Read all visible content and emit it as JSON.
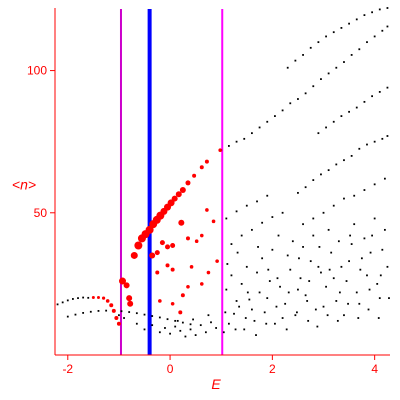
{
  "chart_data": {
    "type": "scatter",
    "xlabel": "E",
    "ylabel": "<n>",
    "xlim": [
      -2.25,
      4.3
    ],
    "ylim": [
      0,
      122
    ],
    "x_ticks": [
      {
        "value": -2,
        "label": "-2"
      },
      {
        "value": 0,
        "label": "0"
      },
      {
        "value": 2,
        "label": "2"
      },
      {
        "value": 4,
        "label": "4"
      }
    ],
    "y_ticks": [
      {
        "value": 50,
        "label": "50"
      },
      {
        "value": 100,
        "label": "100"
      }
    ],
    "grid": false,
    "vertical_lines": [
      {
        "x": -0.96,
        "color": "#cc00cc"
      },
      {
        "x": -0.4,
        "color": "#0000ff"
      },
      {
        "x": 1.02,
        "color": "#ff00ff"
      }
    ],
    "series": [
      {
        "color": "#ff0000",
        "values": [
          [
            -1.5,
            20.2,
            1.5
          ],
          [
            -1.4,
            20.2,
            1.5
          ],
          [
            -1.3,
            20.0,
            1.6
          ],
          [
            -1.22,
            19.0,
            1.8
          ],
          [
            -1.15,
            17.5,
            2.0
          ],
          [
            -1.1,
            15.5,
            2.0
          ],
          [
            -1.05,
            13.0,
            2.0
          ],
          [
            -1.0,
            11.0,
            2.0
          ],
          [
            -0.93,
            26.0,
            3.5
          ],
          [
            -0.85,
            24.5,
            3.0
          ],
          [
            -0.8,
            20.0,
            3.0
          ],
          [
            -0.78,
            18.0,
            3.0
          ],
          [
            -0.7,
            35.0,
            3.5
          ],
          [
            -0.62,
            38.5,
            4.0
          ],
          [
            -0.55,
            41.0,
            4.0
          ],
          [
            -0.48,
            42.5,
            4.0
          ],
          [
            -0.4,
            44.0,
            4.0
          ],
          [
            -0.33,
            46.0,
            4.0
          ],
          [
            -0.26,
            47.5,
            4.0
          ],
          [
            -0.19,
            49.0,
            4.0
          ],
          [
            -0.12,
            50.5,
            3.5
          ],
          [
            -0.05,
            52.0,
            3.5
          ],
          [
            0.02,
            53.5,
            3.5
          ],
          [
            0.09,
            55.0,
            3.0
          ],
          [
            0.17,
            56.5,
            3.0
          ],
          [
            0.25,
            58.0,
            3.0
          ],
          [
            0.35,
            60.5,
            2.5
          ],
          [
            0.47,
            63.0,
            2.0
          ],
          [
            0.62,
            66.0,
            2.0
          ],
          [
            0.72,
            68.0,
            2.0
          ],
          [
            0.98,
            72.0,
            1.8
          ],
          [
            -0.35,
            35.0,
            3.0
          ],
          [
            -0.25,
            36.0,
            2.5
          ],
          [
            -0.15,
            39.5,
            2.5
          ],
          [
            -0.05,
            38.0,
            2.5
          ],
          [
            0.05,
            38.5,
            2.5
          ],
          [
            0.22,
            46.5,
            3.0
          ],
          [
            0.35,
            41.0,
            2.0
          ],
          [
            0.52,
            40.0,
            1.8
          ],
          [
            0.62,
            42.0,
            1.8
          ],
          [
            0.72,
            51.0,
            1.8
          ],
          [
            0.85,
            47.0,
            1.8
          ],
          [
            -0.25,
            29.0,
            2.0
          ],
          [
            -0.05,
            31.5,
            2.0
          ],
          [
            0.05,
            30.0,
            2.0
          ],
          [
            0.25,
            21.0,
            2.0
          ],
          [
            0.42,
            31.0,
            1.8
          ],
          [
            0.62,
            25.0,
            1.8
          ],
          [
            0.75,
            29.0,
            1.8
          ],
          [
            0.92,
            33.0,
            1.8
          ],
          [
            0.2,
            15.0,
            2.0
          ],
          [
            0.05,
            18.0,
            1.8
          ],
          [
            -0.2,
            19.0,
            1.8
          ],
          [
            0.35,
            24.0,
            1.8
          ]
        ]
      },
      {
        "color": "#000000",
        "values": [
          [
            -2.2,
            17.8
          ],
          [
            -2.1,
            18.5
          ],
          [
            -2.0,
            19.2
          ],
          [
            -1.9,
            19.7
          ],
          [
            -1.8,
            20.0
          ],
          [
            -1.7,
            20.2
          ],
          [
            -1.6,
            20.1
          ],
          [
            -1.0,
            14.0
          ],
          [
            -0.9,
            13.0
          ],
          [
            -2.0,
            13.5
          ],
          [
            -1.85,
            14.2
          ],
          [
            -1.7,
            14.8
          ],
          [
            -1.55,
            15.2
          ],
          [
            -1.4,
            15.5
          ],
          [
            -1.25,
            15.6
          ],
          [
            -1.1,
            15.6
          ],
          [
            -0.95,
            15.4
          ],
          [
            -0.8,
            15.1
          ],
          [
            -0.65,
            14.7
          ],
          [
            -0.5,
            14.2
          ],
          [
            -0.35,
            13.7
          ],
          [
            -0.2,
            13.2
          ],
          [
            -0.05,
            12.6
          ],
          [
            0.1,
            12.0
          ],
          [
            0.25,
            11.4
          ],
          [
            0.4,
            10.8
          ],
          [
            1.0,
            72.0
          ],
          [
            1.15,
            73.5
          ],
          [
            1.3,
            75.0
          ],
          [
            1.45,
            76.0
          ],
          [
            1.6,
            78.0
          ],
          [
            1.75,
            80.0
          ],
          [
            1.9,
            82.0
          ],
          [
            2.05,
            84.0
          ],
          [
            2.2,
            86.0
          ],
          [
            2.35,
            88.5
          ],
          [
            2.5,
            90.0
          ],
          [
            2.65,
            92.0
          ],
          [
            2.8,
            94.5
          ],
          [
            2.95,
            97.0
          ],
          [
            3.1,
            99.0
          ],
          [
            3.25,
            101.0
          ],
          [
            3.4,
            103.0
          ],
          [
            3.55,
            105.5
          ],
          [
            3.7,
            107.5
          ],
          [
            3.85,
            110.0
          ],
          [
            4.0,
            112.0
          ],
          [
            4.15,
            114.0
          ],
          [
            4.25,
            115.5
          ],
          [
            2.3,
            101.0
          ],
          [
            2.45,
            103.5
          ],
          [
            2.6,
            105.5
          ],
          [
            2.75,
            108.0
          ],
          [
            2.9,
            110.0
          ],
          [
            3.05,
            112.0
          ],
          [
            3.2,
            113.5
          ],
          [
            3.35,
            115.0
          ],
          [
            3.5,
            116.5
          ],
          [
            3.65,
            118.0
          ],
          [
            3.8,
            119.5
          ],
          [
            3.95,
            120.5
          ],
          [
            4.1,
            121.5
          ],
          [
            4.25,
            122.0
          ],
          [
            2.5,
            57.0
          ],
          [
            2.65,
            59.0
          ],
          [
            2.8,
            61.5
          ],
          [
            2.95,
            63.5
          ],
          [
            3.1,
            65.0
          ],
          [
            3.25,
            67.0
          ],
          [
            3.4,
            68.5
          ],
          [
            3.55,
            70.0
          ],
          [
            3.7,
            72.5
          ],
          [
            3.85,
            74.0
          ],
          [
            4.0,
            75.0
          ],
          [
            4.15,
            76.0
          ],
          [
            4.25,
            77.0
          ],
          [
            2.9,
            78.0
          ],
          [
            3.05,
            80.0
          ],
          [
            3.2,
            82.0
          ],
          [
            3.35,
            84.0
          ],
          [
            3.5,
            85.5
          ],
          [
            3.65,
            87.0
          ],
          [
            3.8,
            89.0
          ],
          [
            3.95,
            91.0
          ],
          [
            4.1,
            92.5
          ],
          [
            4.25,
            94.0
          ],
          [
            1.1,
            48.0
          ],
          [
            1.3,
            50.5
          ],
          [
            1.5,
            52.5
          ],
          [
            1.7,
            54.0
          ],
          [
            1.9,
            56.0
          ],
          [
            1.2,
            39.0
          ],
          [
            1.4,
            42.0
          ],
          [
            1.6,
            44.0
          ],
          [
            1.8,
            46.5
          ],
          [
            2.0,
            48.5
          ],
          [
            2.2,
            50.0
          ],
          [
            2.6,
            46.0
          ],
          [
            2.8,
            48.0
          ],
          [
            3.0,
            50.0
          ],
          [
            3.2,
            52.5
          ],
          [
            3.4,
            55.0
          ],
          [
            3.6,
            56.0
          ],
          [
            3.8,
            58.0
          ],
          [
            4.0,
            60.0
          ],
          [
            4.2,
            62.0
          ],
          [
            -0.2,
            8.0
          ],
          [
            -0.1,
            9.5
          ],
          [
            0.0,
            7.5
          ],
          [
            0.1,
            10.0
          ],
          [
            0.2,
            8.5
          ],
          [
            0.3,
            6.5
          ],
          [
            0.4,
            9.0
          ],
          [
            0.5,
            7.0
          ],
          [
            0.6,
            10.5
          ],
          [
            0.7,
            8.0
          ],
          [
            0.8,
            11.5
          ],
          [
            0.9,
            9.5
          ],
          [
            -0.35,
            10.5
          ],
          [
            -0.5,
            9.0
          ],
          [
            -0.65,
            11.0
          ],
          [
            0.15,
            12.0
          ],
          [
            0.45,
            12.5
          ],
          [
            0.75,
            14.0
          ],
          [
            1.05,
            8.0
          ],
          [
            1.15,
            11.0
          ],
          [
            1.25,
            14.5
          ],
          [
            1.35,
            17.0
          ],
          [
            1.45,
            9.0
          ],
          [
            1.55,
            19.5
          ],
          [
            1.65,
            12.0
          ],
          [
            1.75,
            22.0
          ],
          [
            1.85,
            15.0
          ],
          [
            1.95,
            26.0
          ],
          [
            2.05,
            11.0
          ],
          [
            2.15,
            24.0
          ],
          [
            2.25,
            18.0
          ],
          [
            2.35,
            30.0
          ],
          [
            2.45,
            14.0
          ],
          [
            2.55,
            27.0
          ],
          [
            2.65,
            21.0
          ],
          [
            2.75,
            33.0
          ],
          [
            2.85,
            16.0
          ],
          [
            2.95,
            29.0
          ],
          [
            3.05,
            24.0
          ],
          [
            3.15,
            36.0
          ],
          [
            3.25,
            19.0
          ],
          [
            3.35,
            31.0
          ],
          [
            3.45,
            26.0
          ],
          [
            3.55,
            39.0
          ],
          [
            3.65,
            22.0
          ],
          [
            3.75,
            34.0
          ],
          [
            3.85,
            28.0
          ],
          [
            3.95,
            42.0
          ],
          [
            4.05,
            25.0
          ],
          [
            4.15,
            37.0
          ],
          [
            4.25,
            31.0
          ],
          [
            1.1,
            23.0
          ],
          [
            1.2,
            28.0
          ],
          [
            1.3,
            19.0
          ],
          [
            1.4,
            25.0
          ],
          [
            1.5,
            31.0
          ],
          [
            1.6,
            16.0
          ],
          [
            1.7,
            29.0
          ],
          [
            1.8,
            34.0
          ],
          [
            1.9,
            20.0
          ],
          [
            2.0,
            37.0
          ],
          [
            2.1,
            27.0
          ],
          [
            2.2,
            13.0
          ],
          [
            2.3,
            35.0
          ],
          [
            2.4,
            40.0
          ],
          [
            2.5,
            23.0
          ],
          [
            2.6,
            38.0
          ],
          [
            2.7,
            12.0
          ],
          [
            2.8,
            42.0
          ],
          [
            2.9,
            31.0
          ],
          [
            3.0,
            17.0
          ],
          [
            3.1,
            44.0
          ],
          [
            3.2,
            27.0
          ],
          [
            3.3,
            40.0
          ],
          [
            3.4,
            14.0
          ],
          [
            3.5,
            33.0
          ],
          [
            3.6,
            46.0
          ],
          [
            3.7,
            18.0
          ],
          [
            3.8,
            41.0
          ],
          [
            3.9,
            23.0
          ],
          [
            4.0,
            48.0
          ],
          [
            4.1,
            20.0
          ],
          [
            4.2,
            44.0
          ],
          [
            1.12,
            32.0
          ],
          [
            1.32,
            36.0
          ],
          [
            1.52,
            22.0
          ],
          [
            1.72,
            38.0
          ],
          [
            1.92,
            30.0
          ],
          [
            2.12,
            42.0
          ],
          [
            2.32,
            22.0
          ],
          [
            2.52,
            34.0
          ],
          [
            2.72,
            26.0
          ],
          [
            2.92,
            38.0
          ],
          [
            3.12,
            30.0
          ],
          [
            3.32,
            22.0
          ],
          [
            3.52,
            42.0
          ],
          [
            3.72,
            30.0
          ],
          [
            3.92,
            36.0
          ],
          [
            4.12,
            28.0
          ],
          [
            1.08,
            15.0
          ],
          [
            1.28,
            9.0
          ],
          [
            1.48,
            13.0
          ],
          [
            1.68,
            7.0
          ],
          [
            1.88,
            11.0
          ],
          [
            2.08,
            17.0
          ],
          [
            2.28,
            9.0
          ],
          [
            2.48,
            15.0
          ],
          [
            2.68,
            19.0
          ],
          [
            2.88,
            10.0
          ],
          [
            3.08,
            14.0
          ],
          [
            3.28,
            12.0
          ],
          [
            3.48,
            18.0
          ],
          [
            3.68,
            13.0
          ],
          [
            3.88,
            16.0
          ],
          [
            4.08,
            13.0
          ],
          [
            4.28,
            20.0
          ]
        ]
      }
    ]
  }
}
